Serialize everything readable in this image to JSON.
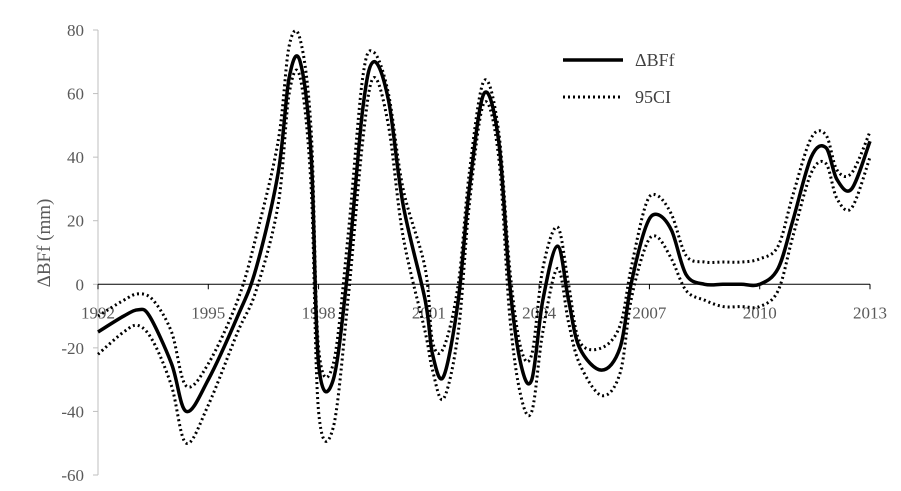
{
  "chart_data": {
    "type": "line",
    "title": "",
    "xlabel": "",
    "ylabel": "ΔBFf (mm)",
    "xlim": [
      1992,
      2013
    ],
    "ylim": [
      -60,
      80
    ],
    "x_ticks": [
      "1992",
      "1995",
      "1998",
      "2001",
      "2004",
      "2007",
      "2010",
      "2013"
    ],
    "y_ticks": [
      "-60",
      "-40",
      "-20",
      "0",
      "20",
      "40",
      "60",
      "80"
    ],
    "grid": false,
    "legend_position": "top-right",
    "series": [
      {
        "name": "ΔBFf",
        "style": "solid",
        "color": "#000000",
        "x": [
          1992,
          1992.7,
          1993.1,
          1993.4,
          1994.0,
          1994.4,
          1995.0,
          1995.8,
          1996.3,
          1996.9,
          1997.2,
          1997.5,
          1997.8,
          1998.0,
          1998.4,
          1998.8,
          1999.2,
          1999.5,
          1999.9,
          2000.3,
          2000.9,
          2001.1,
          2001.4,
          2001.8,
          2002.1,
          2002.5,
          2002.9,
          2003.2,
          2003.5,
          2003.8,
          2004.1,
          2004.5,
          2004.8,
          2005.1,
          2005.7,
          2006.2,
          2006.5,
          2006.9,
          2007.2,
          2007.6,
          2008.0,
          2008.5,
          2009.0,
          2009.5,
          2010.0,
          2010.5,
          2010.9,
          2011.4,
          2011.8,
          2012.1,
          2012.5,
          2013.0
        ],
        "y": [
          -15,
          -10,
          -8,
          -10,
          -25,
          -40,
          -30,
          -10,
          5,
          35,
          65,
          70,
          40,
          -25,
          -30,
          5,
          55,
          70,
          58,
          25,
          -5,
          -22,
          -29,
          -5,
          30,
          60,
          45,
          0,
          -25,
          -30,
          -5,
          12,
          -5,
          -20,
          -27,
          -20,
          0,
          18,
          22,
          17,
          3,
          0,
          0,
          0,
          0,
          5,
          20,
          40,
          43,
          33,
          30,
          45
        ]
      },
      {
        "name": "95CI",
        "style": "dotted",
        "color": "#000000",
        "x": [
          1992,
          1992.7,
          1993.1,
          1993.5,
          1994.0,
          1994.4,
          1995.0,
          1995.8,
          1996.3,
          1996.9,
          1997.2,
          1997.5,
          1997.8,
          1998.0,
          1998.4,
          1998.8,
          1999.2,
          1999.5,
          1999.9,
          2000.3,
          2000.9,
          2001.1,
          2001.4,
          2001.8,
          2002.1,
          2002.5,
          2002.9,
          2003.2,
          2003.5,
          2003.8,
          2004.1,
          2004.5,
          2004.8,
          2005.1,
          2005.7,
          2006.2,
          2006.5,
          2006.9,
          2007.2,
          2007.6,
          2008.0,
          2008.5,
          2009.0,
          2009.5,
          2010.0,
          2010.5,
          2010.9,
          2011.4,
          2011.8,
          2012.1,
          2012.5,
          2013.0
        ],
        "y": [
          -10,
          -5,
          -3,
          -5,
          -15,
          -32,
          -25,
          -5,
          15,
          45,
          75,
          77,
          48,
          -20,
          -25,
          15,
          65,
          73,
          60,
          30,
          5,
          -18,
          -20,
          0,
          35,
          64,
          48,
          5,
          -20,
          -22,
          5,
          18,
          0,
          -18,
          -20,
          -13,
          5,
          25,
          28,
          22,
          9,
          7,
          7,
          7,
          8,
          12,
          28,
          46,
          47,
          36,
          35,
          48
        ]
      },
      {
        "name": "",
        "style": "dotted",
        "color": "#000000",
        "x": [
          1992,
          1992.7,
          1993.1,
          1993.5,
          1994.0,
          1994.4,
          1995.0,
          1995.8,
          1996.3,
          1996.9,
          1997.2,
          1997.5,
          1997.8,
          1998.0,
          1998.4,
          1998.8,
          1999.2,
          1999.5,
          1999.9,
          2000.3,
          2000.9,
          2001.1,
          2001.4,
          2001.8,
          2002.1,
          2002.5,
          2002.9,
          2003.2,
          2003.5,
          2003.8,
          2004.1,
          2004.5,
          2004.8,
          2005.1,
          2005.7,
          2006.2,
          2006.5,
          2006.9,
          2007.2,
          2007.6,
          2008.0,
          2008.5,
          2009.0,
          2009.5,
          2010.0,
          2010.5,
          2010.9,
          2011.4,
          2011.8,
          2012.1,
          2012.5,
          2013.0
        ],
        "y": [
          -22,
          -15,
          -13,
          -18,
          -32,
          -50,
          -38,
          -15,
          -2,
          25,
          60,
          65,
          30,
          -40,
          -45,
          -5,
          45,
          65,
          50,
          15,
          -15,
          -27,
          -36,
          -15,
          25,
          57,
          40,
          -10,
          -35,
          -40,
          -15,
          5,
          -12,
          -25,
          -35,
          -28,
          -5,
          12,
          15,
          8,
          -2,
          -5,
          -7,
          -7,
          -7,
          -2,
          15,
          35,
          38,
          27,
          24,
          40
        ]
      }
    ]
  }
}
